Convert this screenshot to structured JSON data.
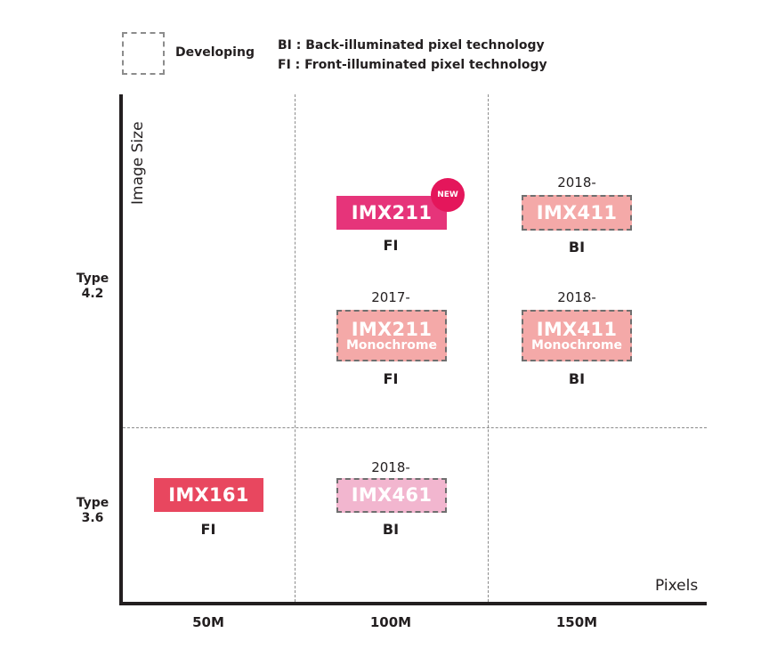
{
  "legend": {
    "developing": "Developing",
    "bi_def": "BI : Back-illuminated pixel technology",
    "fi_def": "FI : Front-illuminated pixel technology"
  },
  "axes": {
    "y_title": "Image Size",
    "x_title": "Pixels",
    "y_ticks": [
      {
        "line1": "Type",
        "line2": "4.2"
      },
      {
        "line1": "Type",
        "line2": "3.6"
      }
    ],
    "x_ticks": [
      "50M",
      "100M",
      "150M"
    ]
  },
  "colors": {
    "imx211": "#e6347a",
    "imx161": "#e8475f",
    "developing_salmon": "#f4a9a8",
    "imx461": "#f2b6cf",
    "new_badge": "#e4165b"
  },
  "sensors": {
    "imx211": {
      "name": "IMX211",
      "tech": "FI",
      "badge": "NEW"
    },
    "imx411": {
      "year": "2018-",
      "name": "IMX411",
      "tech": "BI"
    },
    "imx211_mono": {
      "year": "2017-",
      "name": "IMX211",
      "sub": "Monochrome",
      "tech": "FI"
    },
    "imx411_mono": {
      "year": "2018-",
      "name": "IMX411",
      "sub": "Monochrome",
      "tech": "BI"
    },
    "imx161": {
      "name": "IMX161",
      "tech": "FI"
    },
    "imx461": {
      "year": "2018-",
      "name": "IMX461",
      "tech": "BI"
    }
  }
}
